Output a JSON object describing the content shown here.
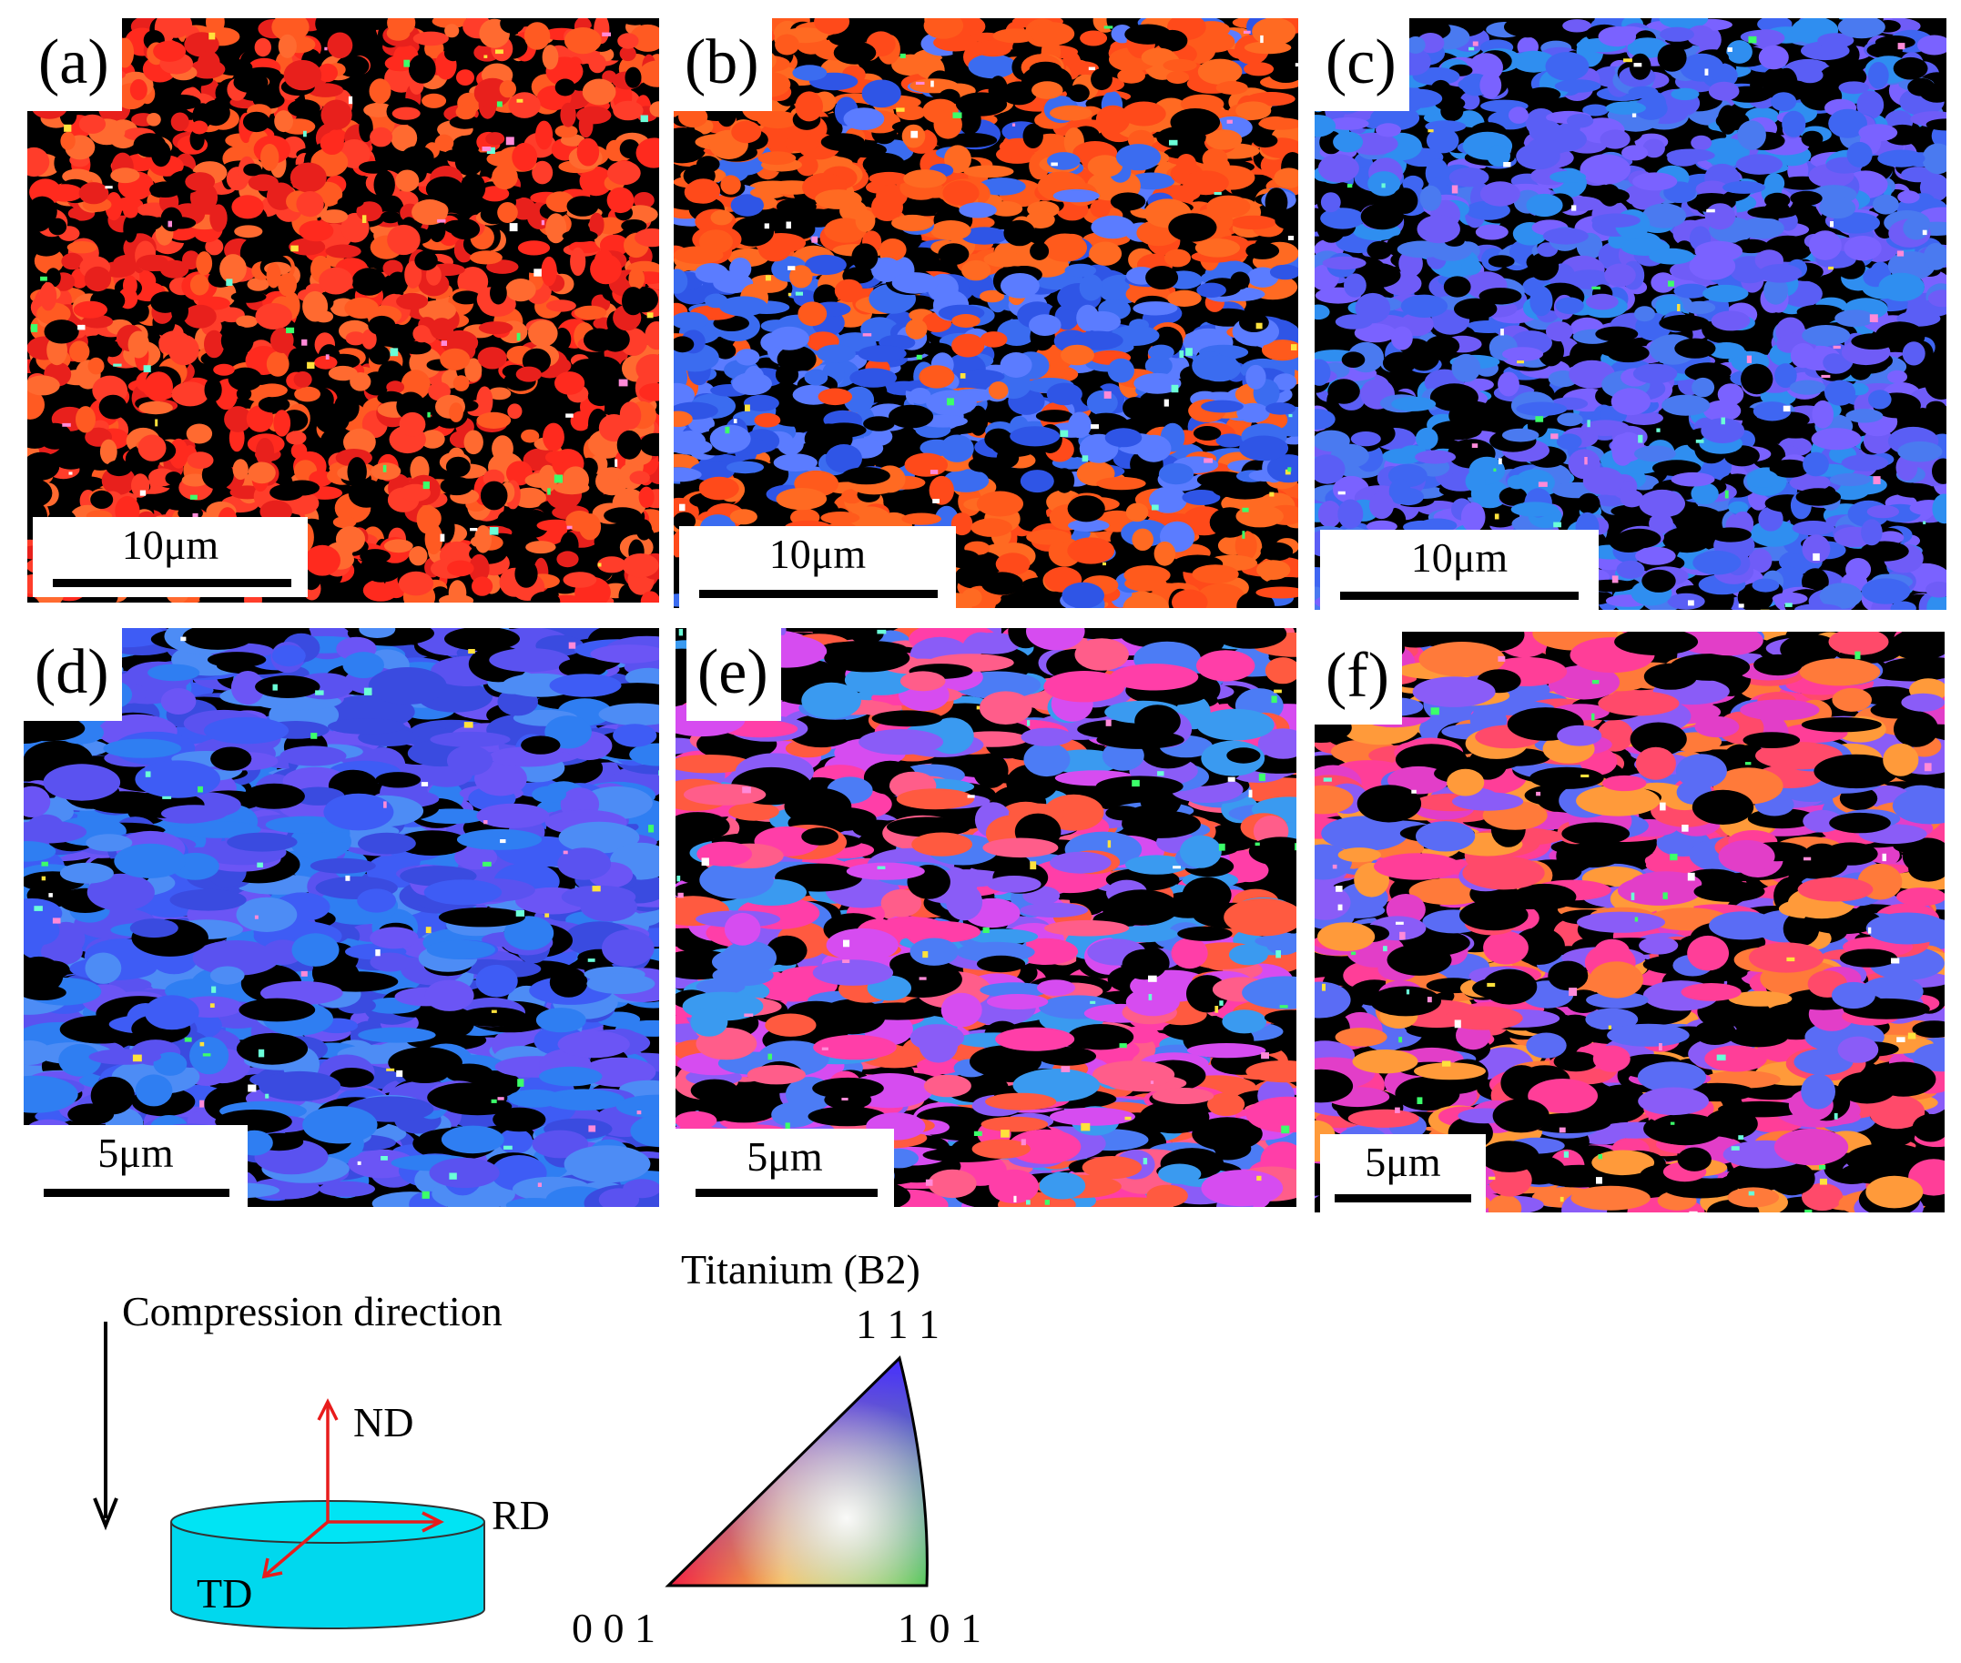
{
  "panels": [
    {
      "label": "(a)",
      "scale": "10μm",
      "palette": [
        "#ff2a1e",
        "#ff3d2a",
        "#ff5a22",
        "#e8201c",
        "#ff6a30"
      ],
      "black": 0.3
    },
    {
      "label": "(b)",
      "scale": "10μm",
      "palette": [
        "#ff5a1c",
        "#ff6a22",
        "#ff4a1a",
        "#3b6cf0",
        "#2f55e6",
        "#5b7cff"
      ],
      "black": 0.22
    },
    {
      "label": "(c)",
      "scale": "10μm",
      "palette": [
        "#3f66f2",
        "#5a5ef5",
        "#2f8ef0",
        "#6f5cf7",
        "#4a7af0",
        "#7a62ff"
      ],
      "black": 0.22
    },
    {
      "label": "(d)",
      "scale": "5μm",
      "palette": [
        "#3e5cf5",
        "#5a52f0",
        "#2f7ef2",
        "#6b55f5",
        "#3a4be0",
        "#4d8cf5"
      ],
      "black": 0.22
    },
    {
      "label": "(e)",
      "scale": "5μm",
      "palette": [
        "#ff3ea8",
        "#d64cf0",
        "#4c7cf5",
        "#ff5d8a",
        "#8a5cf7",
        "#ff5a40",
        "#3a9af0"
      ],
      "black": 0.34
    },
    {
      "label": "(f)",
      "scale": "5μm",
      "palette": [
        "#ff4a6a",
        "#ff7a3a",
        "#ff3e98",
        "#8a5cf7",
        "#ff9a3a",
        "#5a6cf5",
        "#e23ec8"
      ],
      "black": 0.32
    }
  ],
  "legend": {
    "compression": "Compression direction",
    "nd": "ND",
    "rd": "RD",
    "td": "TD",
    "ipf_title": "Titanium (B2)",
    "v111": "1 1 1",
    "v001": "0 0 1",
    "v101": "1 0 1",
    "colors": {
      "cylinder": "#00d8ee",
      "axes": "#e81c1c",
      "c001": "#ff1a1a",
      "c101": "#22e01a",
      "c111": "#2a2aff"
    }
  }
}
